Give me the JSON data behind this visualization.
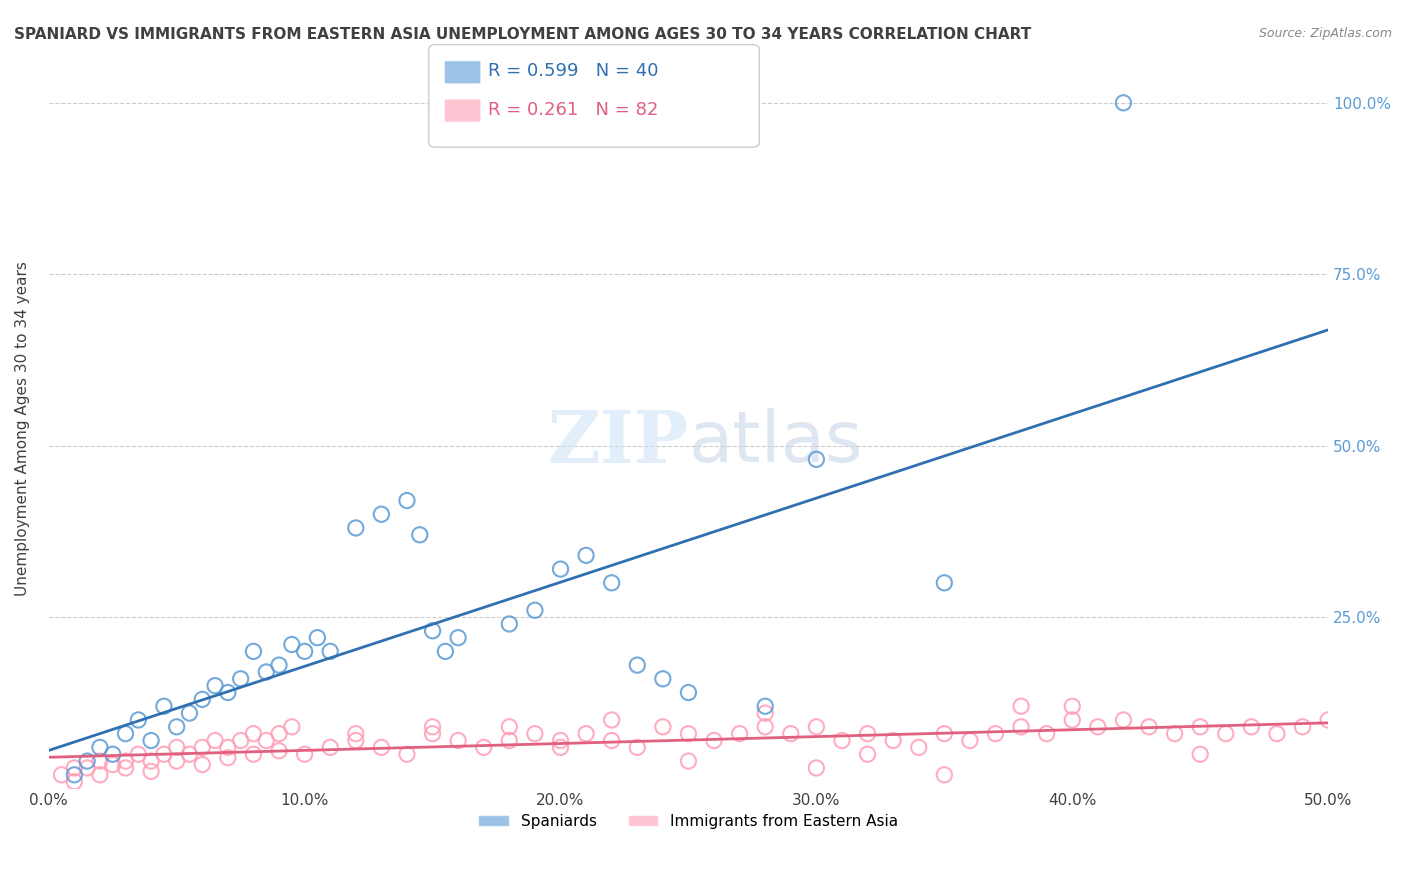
{
  "title": "SPANIARD VS IMMIGRANTS FROM EASTERN ASIA UNEMPLOYMENT AMONG AGES 30 TO 34 YEARS CORRELATION CHART",
  "source": "Source: ZipAtlas.com",
  "ylabel": "Unemployment Among Ages 30 to 34 years",
  "xlim": [
    0.0,
    0.5
  ],
  "ylim": [
    0.0,
    1.05
  ],
  "xticks": [
    0.0,
    0.1,
    0.2,
    0.3,
    0.4,
    0.5
  ],
  "xticklabels": [
    "0.0%",
    "10.0%",
    "20.0%",
    "30.0%",
    "40.0%",
    "50.0%"
  ],
  "yticks": [
    0.0,
    0.25,
    0.5,
    0.75,
    1.0
  ],
  "yticklabels": [
    "",
    "25.0%",
    "50.0%",
    "75.0%",
    "100.0%"
  ],
  "blue_color": "#5b9bd5",
  "pink_color": "#ff9eb5",
  "blue_line_color": "#3070b0",
  "pink_line_color": "#e06080",
  "R_blue": 0.599,
  "N_blue": 40,
  "R_pink": 0.261,
  "N_pink": 82,
  "legend_label_blue": "Spaniards",
  "legend_label_pink": "Immigrants from Eastern Asia",
  "title_color": "#404040",
  "axis_label_color": "#5b9bd5",
  "blue_scatter_x": [
    0.01,
    0.015,
    0.02,
    0.025,
    0.03,
    0.035,
    0.04,
    0.045,
    0.05,
    0.055,
    0.06,
    0.065,
    0.07,
    0.075,
    0.08,
    0.085,
    0.09,
    0.095,
    0.1,
    0.105,
    0.11,
    0.12,
    0.13,
    0.14,
    0.145,
    0.15,
    0.155,
    0.16,
    0.18,
    0.19,
    0.2,
    0.21,
    0.22,
    0.23,
    0.24,
    0.25,
    0.28,
    0.3,
    0.35,
    0.42
  ],
  "blue_scatter_y": [
    0.02,
    0.04,
    0.06,
    0.05,
    0.08,
    0.1,
    0.07,
    0.12,
    0.09,
    0.11,
    0.13,
    0.15,
    0.14,
    0.16,
    0.2,
    0.17,
    0.18,
    0.21,
    0.2,
    0.22,
    0.2,
    0.38,
    0.4,
    0.42,
    0.37,
    0.23,
    0.2,
    0.22,
    0.24,
    0.26,
    0.32,
    0.34,
    0.3,
    0.18,
    0.16,
    0.14,
    0.12,
    0.48,
    0.3,
    1.0
  ],
  "pink_scatter_x": [
    0.005,
    0.01,
    0.015,
    0.02,
    0.025,
    0.03,
    0.035,
    0.04,
    0.045,
    0.05,
    0.055,
    0.06,
    0.065,
    0.07,
    0.075,
    0.08,
    0.085,
    0.09,
    0.095,
    0.1,
    0.11,
    0.12,
    0.13,
    0.14,
    0.15,
    0.16,
    0.17,
    0.18,
    0.19,
    0.2,
    0.21,
    0.22,
    0.23,
    0.24,
    0.25,
    0.26,
    0.27,
    0.28,
    0.29,
    0.3,
    0.31,
    0.32,
    0.33,
    0.34,
    0.35,
    0.36,
    0.37,
    0.38,
    0.39,
    0.4,
    0.41,
    0.42,
    0.43,
    0.44,
    0.45,
    0.46,
    0.47,
    0.48,
    0.49,
    0.5,
    0.01,
    0.02,
    0.03,
    0.04,
    0.05,
    0.06,
    0.07,
    0.08,
    0.09,
    0.15,
    0.2,
    0.25,
    0.3,
    0.35,
    0.4,
    0.45,
    0.12,
    0.18,
    0.22,
    0.28,
    0.32,
    0.38
  ],
  "pink_scatter_y": [
    0.02,
    0.03,
    0.03,
    0.04,
    0.035,
    0.04,
    0.05,
    0.04,
    0.05,
    0.06,
    0.05,
    0.06,
    0.07,
    0.06,
    0.07,
    0.08,
    0.07,
    0.08,
    0.09,
    0.05,
    0.06,
    0.07,
    0.06,
    0.05,
    0.08,
    0.07,
    0.06,
    0.07,
    0.08,
    0.07,
    0.08,
    0.07,
    0.06,
    0.09,
    0.08,
    0.07,
    0.08,
    0.09,
    0.08,
    0.09,
    0.07,
    0.08,
    0.07,
    0.06,
    0.08,
    0.07,
    0.08,
    0.09,
    0.08,
    0.1,
    0.09,
    0.1,
    0.09,
    0.08,
    0.09,
    0.08,
    0.09,
    0.08,
    0.09,
    0.1,
    0.01,
    0.02,
    0.03,
    0.025,
    0.04,
    0.035,
    0.045,
    0.05,
    0.055,
    0.09,
    0.06,
    0.04,
    0.03,
    0.02,
    0.12,
    0.05,
    0.08,
    0.09,
    0.1,
    0.11,
    0.05,
    0.12
  ]
}
